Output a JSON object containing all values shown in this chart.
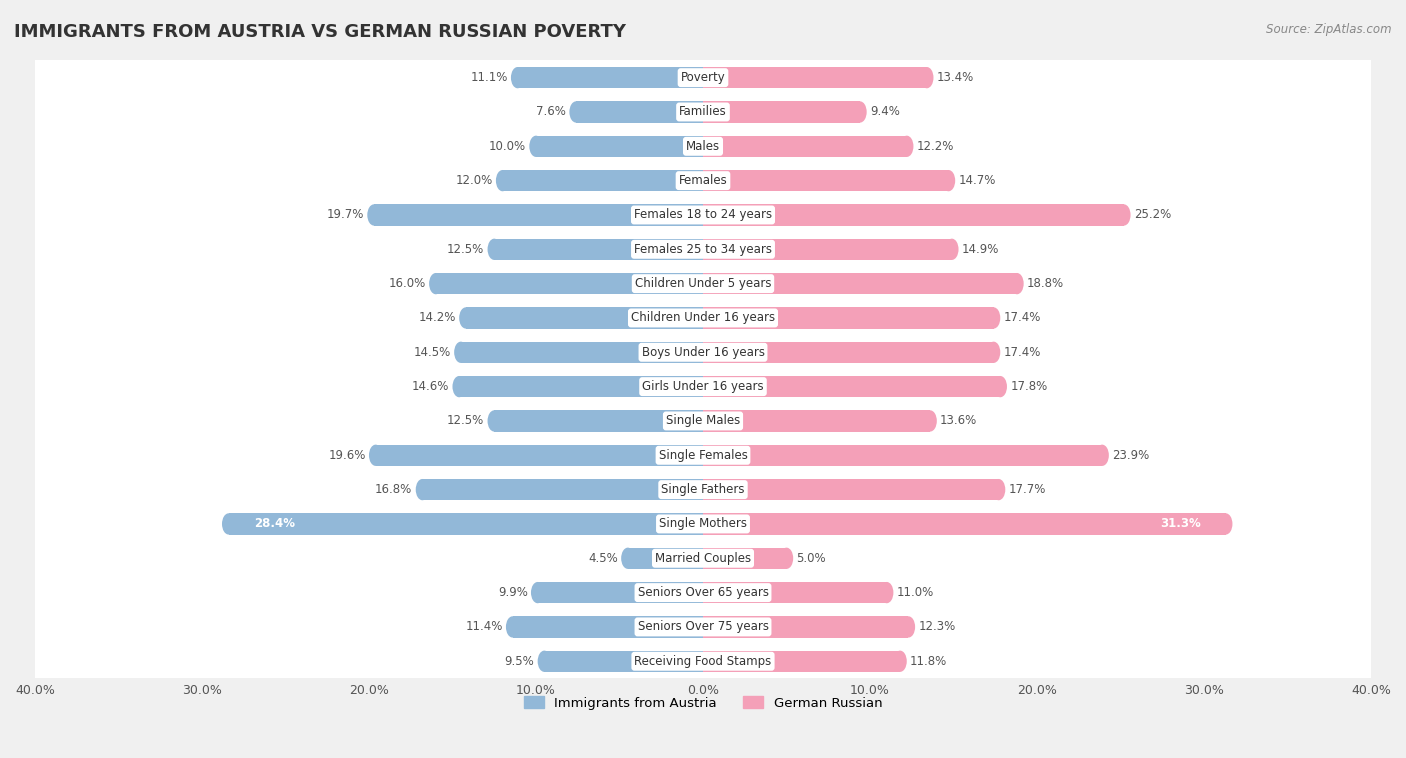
{
  "title": "IMMIGRANTS FROM AUSTRIA VS GERMAN RUSSIAN POVERTY",
  "source": "Source: ZipAtlas.com",
  "categories": [
    "Poverty",
    "Families",
    "Males",
    "Females",
    "Females 18 to 24 years",
    "Females 25 to 34 years",
    "Children Under 5 years",
    "Children Under 16 years",
    "Boys Under 16 years",
    "Girls Under 16 years",
    "Single Males",
    "Single Females",
    "Single Fathers",
    "Single Mothers",
    "Married Couples",
    "Seniors Over 65 years",
    "Seniors Over 75 years",
    "Receiving Food Stamps"
  ],
  "austria_values": [
    11.1,
    7.6,
    10.0,
    12.0,
    19.7,
    12.5,
    16.0,
    14.2,
    14.5,
    14.6,
    12.5,
    19.6,
    16.8,
    28.4,
    4.5,
    9.9,
    11.4,
    9.5
  ],
  "german_russian_values": [
    13.4,
    9.4,
    12.2,
    14.7,
    25.2,
    14.9,
    18.8,
    17.4,
    17.4,
    17.8,
    13.6,
    23.9,
    17.7,
    31.3,
    5.0,
    11.0,
    12.3,
    11.8
  ],
  "austria_color": "#92b8d8",
  "german_russian_color": "#f4a0b8",
  "background_color": "#f0f0f0",
  "bar_background": "#ffffff",
  "axis_limit": 40.0,
  "bar_height": 0.62,
  "legend_austria": "Immigrants from Austria",
  "legend_german_russian": "German Russian",
  "title_fontsize": 13,
  "label_fontsize": 8.5,
  "value_fontsize": 8.5
}
